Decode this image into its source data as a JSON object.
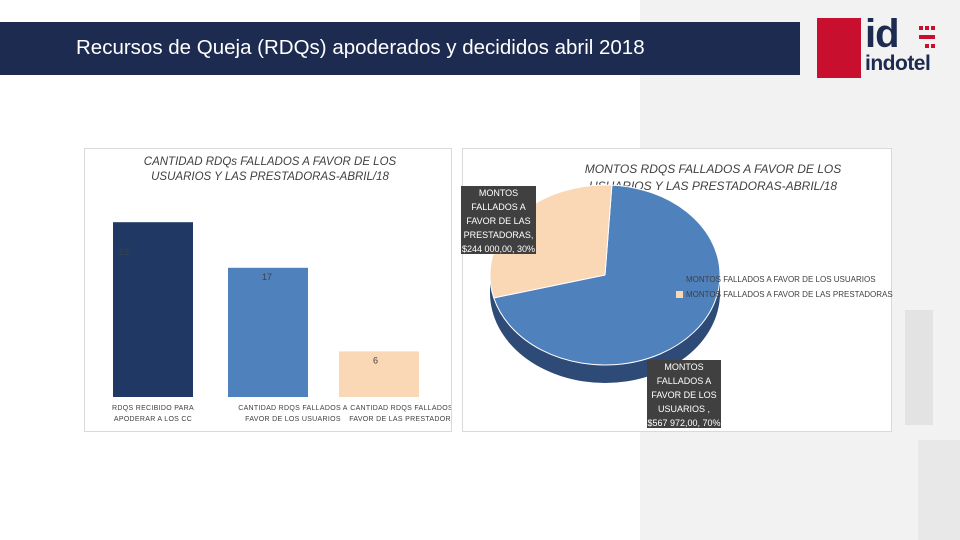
{
  "header": {
    "title": "Recursos de Queja (RDQs) apoderados y decididos abril 2018"
  },
  "logo": {
    "text": "id",
    "subtext": "indotel"
  },
  "colors": {
    "header_bg": "#1c2b4f",
    "logo_red": "#c8102e",
    "bar_dark": "#1f3864",
    "bar_blue": "#4f81bd",
    "bar_peach": "#fad7b5"
  },
  "chart_data": [
    {
      "type": "bar",
      "title": "CANTIDAD RDQs FALLADOS A FAVOR DE LOS USUARIOS Y LAS PRESTADORAS-ABRIL/18",
      "categories": [
        "RDQS RECIBIDO PARA APODERAR A LOS CC",
        "CANTIDAD RDQS FALLADOS A FAVOR DE LOS USUARIOS",
        "CANTIDAD RDQS FALLADOS A FAVOR DE LAS PRESTADORAS"
      ],
      "category_lines": [
        [
          "RDQS RECIBIDO PARA",
          "APODERAR A LOS CC"
        ],
        [
          "CANTIDAD RDQS FALLADOS A",
          "FAVOR DE LOS USUARIOS"
        ],
        [
          "CANTIDAD RDQS FALLADOS A",
          "FAVOR DE LAS PRESTADORAS"
        ]
      ],
      "values": [
        23,
        17,
        6
      ],
      "data_labels": [
        "23",
        "17",
        "6"
      ],
      "bar_colors": [
        "#1f3864",
        "#4f81bd",
        "#fad7b5"
      ],
      "ylim": [
        0,
        25
      ],
      "grid": false
    },
    {
      "type": "pie",
      "title": "MONTOS RDQS FALLADOS A FAVOR DE LOS USUARIOS Y LAS PRESTADORAS-ABRIL/18",
      "labels": [
        "MONTOS FALLADOS A FAVOR DE LOS USUARIOS",
        "MONTOS FALLADOS A FAVOR DE LAS PRESTADORAS"
      ],
      "values": [
        567972,
        244000
      ],
      "percent": [
        70,
        30
      ],
      "slice_colors": [
        "#4f81bd",
        "#fad7b5"
      ],
      "legend_placement": "right",
      "callouts": [
        {
          "lines": [
            "MONTOS",
            "FALLADOS A",
            "FAVOR DE LOS",
            "USUARIOS ,",
            "$567 972,00, 70%"
          ]
        },
        {
          "lines": [
            "MONTOS",
            "FALLADOS  A",
            "FAVOR DE LAS",
            "PRESTADORAS,",
            "$244 000,00, 30%"
          ]
        }
      ]
    }
  ]
}
